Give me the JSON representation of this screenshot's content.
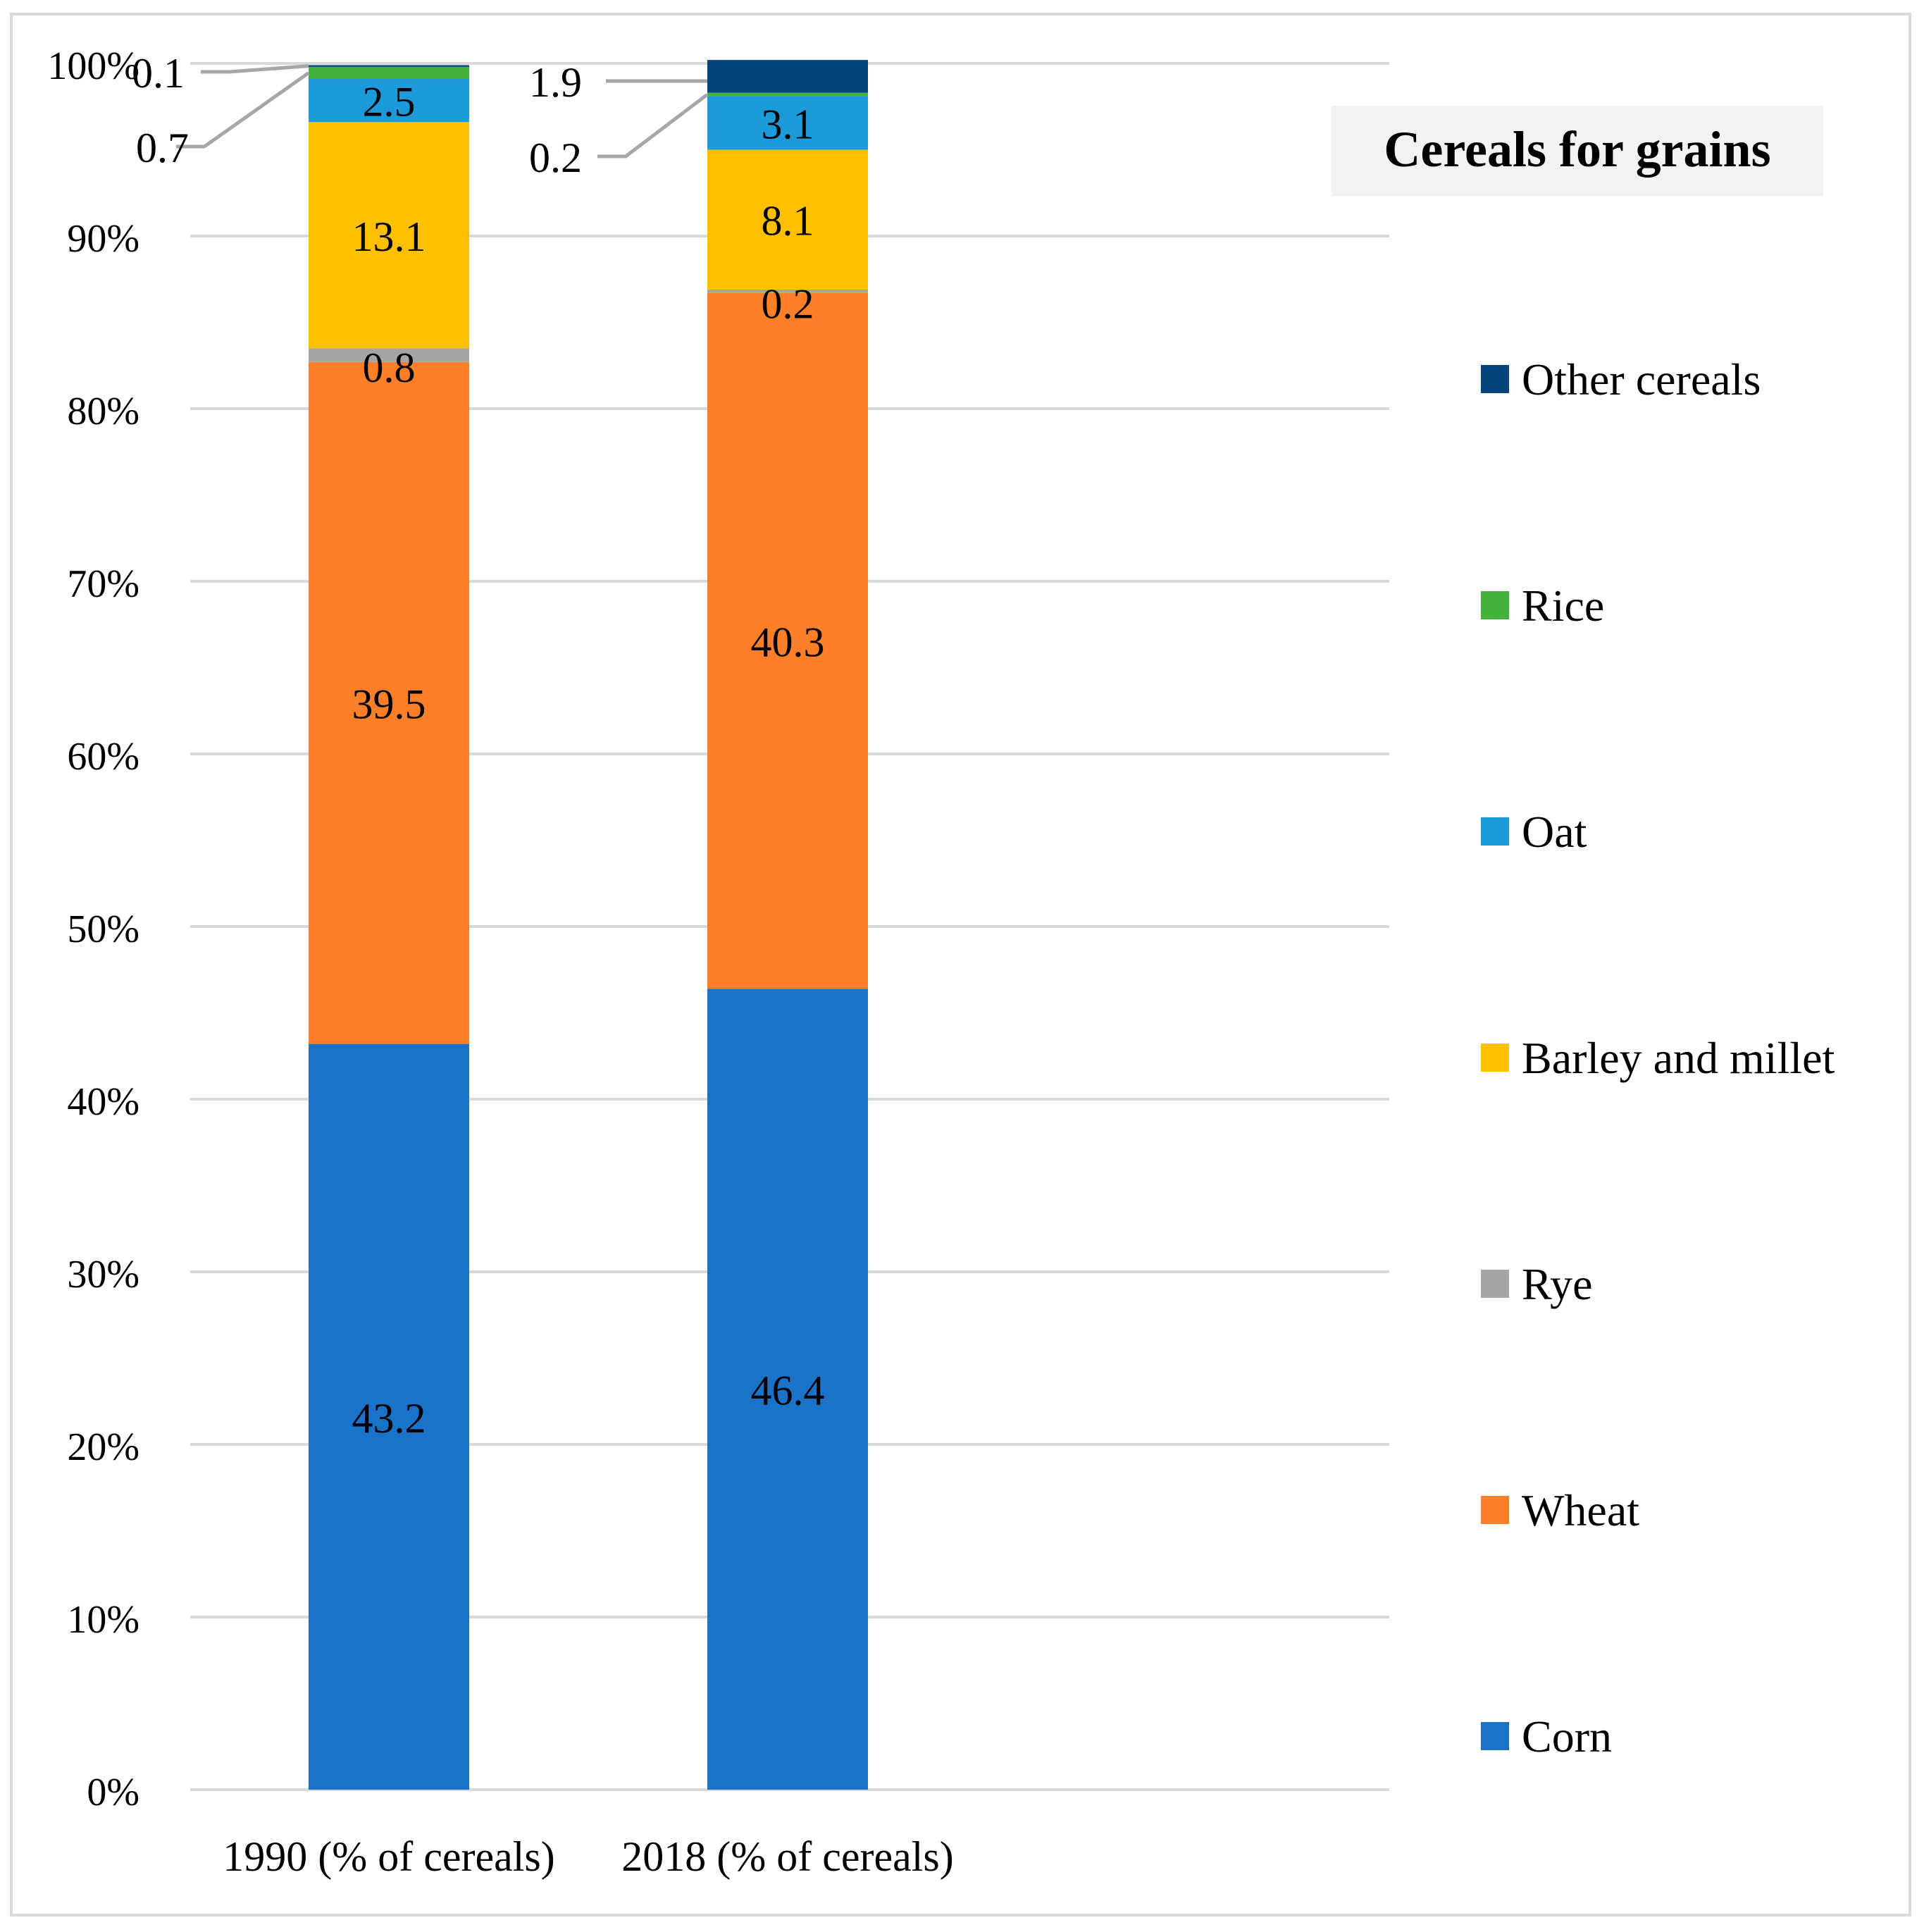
{
  "chart_data": {
    "type": "bar",
    "stacked": true,
    "legend_title": "Cereals for grains",
    "categories": [
      "1990 (% of cereals)",
      "2018 (% of cereals)"
    ],
    "series": [
      {
        "name": "Corn",
        "color": "#1a72c9",
        "values": [
          43.2,
          46.4
        ]
      },
      {
        "name": "Wheat",
        "color": "#fd7f27",
        "values": [
          39.5,
          40.3
        ]
      },
      {
        "name": "Rye",
        "color": "#a5a5a5",
        "values": [
          0.8,
          0.2
        ]
      },
      {
        "name": "Barley and millet",
        "color": "#fec000",
        "values": [
          13.1,
          8.1
        ]
      },
      {
        "name": "Oat",
        "color": "#1d9ada",
        "values": [
          2.5,
          3.1
        ]
      },
      {
        "name": "Rice",
        "color": "#42b23c",
        "values": [
          0.7,
          0.2
        ]
      },
      {
        "name": "Other cereals",
        "color": "#03447c",
        "values": [
          0.1,
          1.9
        ]
      }
    ],
    "ylim": [
      0,
      100
    ],
    "yticks": [
      "0%",
      "10%",
      "20%",
      "30%",
      "40%",
      "50%",
      "60%",
      "70%",
      "80%",
      "90%",
      "100%"
    ],
    "grid": true,
    "legend_position": "right",
    "leader_line_color": "#a6a6a6",
    "gridline_color": "#d9d9d9"
  }
}
